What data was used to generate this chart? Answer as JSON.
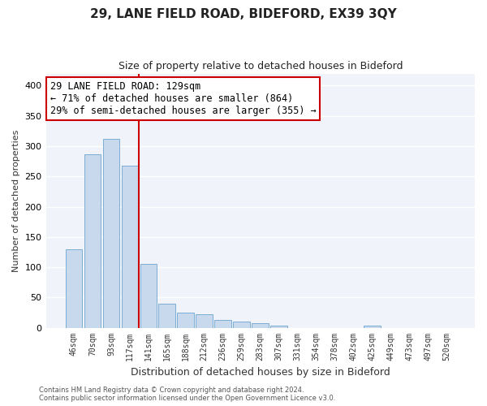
{
  "title1": "29, LANE FIELD ROAD, BIDEFORD, EX39 3QY",
  "title2": "Size of property relative to detached houses in Bideford",
  "xlabel": "Distribution of detached houses by size in Bideford",
  "ylabel": "Number of detached properties",
  "bar_labels": [
    "46sqm",
    "70sqm",
    "93sqm",
    "117sqm",
    "141sqm",
    "165sqm",
    "188sqm",
    "212sqm",
    "236sqm",
    "259sqm",
    "283sqm",
    "307sqm",
    "331sqm",
    "354sqm",
    "378sqm",
    "402sqm",
    "425sqm",
    "449sqm",
    "473sqm",
    "497sqm",
    "520sqm"
  ],
  "bar_values": [
    130,
    287,
    312,
    268,
    106,
    40,
    25,
    22,
    13,
    10,
    8,
    3,
    0,
    0,
    0,
    0,
    4,
    0,
    0,
    0,
    0
  ],
  "bar_color": "#c8d8ed",
  "bar_edge_color": "#7badd4",
  "annotation_line1": "29 LANE FIELD ROAD: 129sqm",
  "annotation_line2": "← 71% of detached houses are smaller (864)",
  "annotation_line3": "29% of semi-detached houses are larger (355) →",
  "annotation_box_color": "#ffffff",
  "annotation_box_edge": "#cc0000",
  "marker_line_color": "#cc0000",
  "ylim": [
    0,
    420
  ],
  "yticks": [
    0,
    50,
    100,
    150,
    200,
    250,
    300,
    350,
    400
  ],
  "footnote1": "Contains HM Land Registry data © Crown copyright and database right 2024.",
  "footnote2": "Contains public sector information licensed under the Open Government Licence v3.0.",
  "bg_color": "#ffffff",
  "plot_bg_color": "#f0f4fa",
  "grid_color": "#ffffff",
  "title1_fontsize": 11,
  "title2_fontsize": 9,
  "xlabel_fontsize": 9,
  "ylabel_fontsize": 8
}
